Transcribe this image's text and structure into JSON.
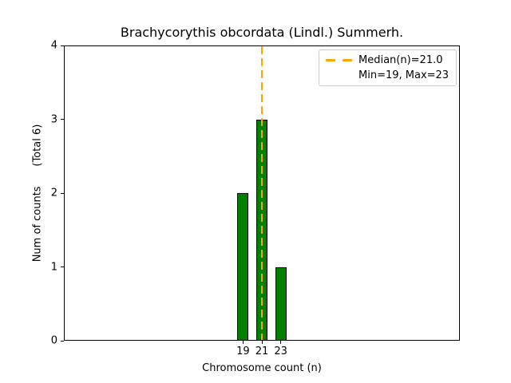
{
  "chart_data": {
    "type": "bar",
    "title": "Brachycorythis obcordata (Lindl.) Summerh.",
    "xlabel": "Chromosome count (n)",
    "ylabel": "Num of counts      (Total 6)",
    "categories": [
      19,
      21,
      23
    ],
    "values": [
      2,
      3,
      1
    ],
    "total_counts": 6,
    "xticks": [
      "19",
      "21",
      "23"
    ],
    "yticks": [
      "0",
      "1",
      "2",
      "3",
      "4"
    ],
    "xlim": [
      0,
      42
    ],
    "ylim": [
      0,
      4
    ],
    "bar_width_units": 1.2,
    "bar_color": "#008000",
    "bar_edge_color": "#000000",
    "grid": false,
    "median_line": {
      "x": 21.0,
      "color": "#FFA500",
      "style": "dashed"
    },
    "stats": {
      "median": 21.0,
      "min": 19,
      "max": 23
    },
    "legend": {
      "position": "upper-right",
      "entries": [
        {
          "label": "Median(n)=21.0",
          "marker": "orange-dashed-line",
          "marker_color": "#FFA500"
        },
        {
          "label": "Min=19, Max=23",
          "marker": "none"
        }
      ]
    }
  }
}
